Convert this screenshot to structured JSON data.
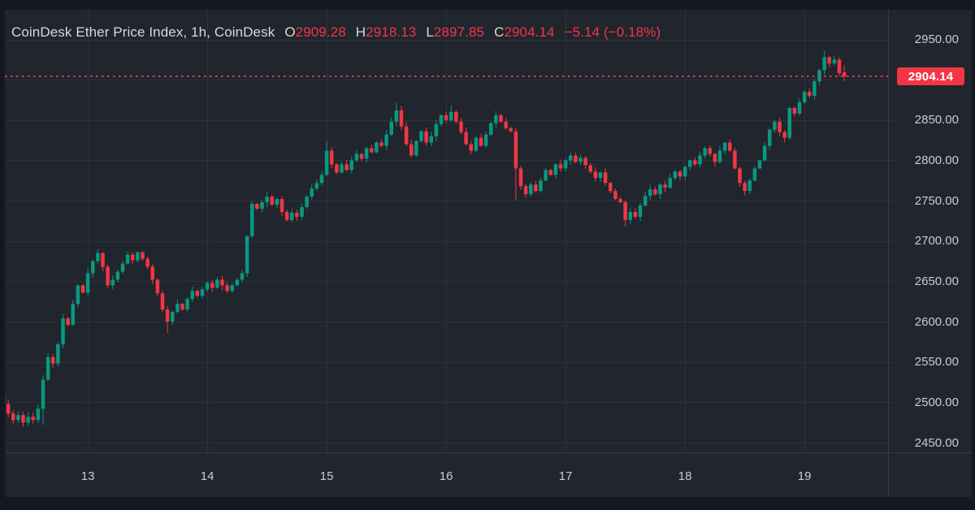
{
  "legend": {
    "title": "CoinDesk Ether Price Index, 1h, CoinDesk",
    "ohlc": [
      {
        "label": "O",
        "value": "2909.28"
      },
      {
        "label": "H",
        "value": "2918.13"
      },
      {
        "label": "L",
        "value": "2897.85"
      },
      {
        "label": "C",
        "value": "2904.14"
      }
    ],
    "change": "−5.14 (−0.18%)"
  },
  "last_price_label": "2904.14",
  "price_axis": {
    "ticks": [
      {
        "value": 2950,
        "label": "2950.00"
      },
      {
        "value": 2900,
        "label": ""
      },
      {
        "value": 2850,
        "label": "2850.00"
      },
      {
        "value": 2800,
        "label": "2800.00"
      },
      {
        "value": 2750,
        "label": "2750.00"
      },
      {
        "value": 2700,
        "label": "2700.00"
      },
      {
        "value": 2650,
        "label": "2650.00"
      },
      {
        "value": 2600,
        "label": "2600.00"
      },
      {
        "value": 2550,
        "label": "2550.00"
      },
      {
        "value": 2500,
        "label": "2500.00"
      },
      {
        "value": 2450,
        "label": "2450.00"
      }
    ]
  },
  "time_axis": {
    "labels": [
      "13",
      "14",
      "15",
      "16",
      "17",
      "18",
      "19"
    ]
  },
  "colors": {
    "up": "#089981",
    "down": "#f23645",
    "accent_red": "#f23645",
    "grid": "#2d3139",
    "separator": "#363b46",
    "pane_bg": "#21252d",
    "outer_bg": "#141823",
    "text": "#c8ccd3",
    "title_text": "#d6d9de"
  },
  "chart_data": {
    "type": "candlestick",
    "title": "CoinDesk Ether Price Index",
    "interval": "1h",
    "source": "CoinDesk",
    "last": {
      "open": 2909.28,
      "high": 2918.13,
      "low": 2897.85,
      "close": 2904.14,
      "change": -5.14,
      "change_pct": -0.18
    },
    "y_axis_range": [
      2438,
      2987
    ],
    "x_labels": [
      "13",
      "14",
      "15",
      "16",
      "17",
      "18",
      "19"
    ],
    "day_tick_first_index": 17,
    "candles_per_day": 24,
    "first_open": 2508,
    "closes": [
      2498,
      2486,
      2478,
      2484,
      2475,
      2482,
      2478,
      2492,
      2528,
      2556,
      2548,
      2572,
      2604,
      2596,
      2622,
      2645,
      2636,
      2660,
      2675,
      2685,
      2668,
      2645,
      2652,
      2662,
      2672,
      2683,
      2676,
      2686,
      2678,
      2668,
      2652,
      2635,
      2615,
      2600,
      2612,
      2622,
      2615,
      2628,
      2638,
      2632,
      2640,
      2648,
      2642,
      2652,
      2645,
      2638,
      2645,
      2652,
      2660,
      2706,
      2746,
      2740,
      2748,
      2755,
      2745,
      2752,
      2736,
      2726,
      2735,
      2730,
      2742,
      2755,
      2765,
      2772,
      2782,
      2812,
      2795,
      2785,
      2795,
      2788,
      2800,
      2808,
      2802,
      2815,
      2810,
      2822,
      2818,
      2832,
      2848,
      2862,
      2842,
      2820,
      2806,
      2824,
      2836,
      2822,
      2830,
      2845,
      2856,
      2850,
      2860,
      2848,
      2835,
      2820,
      2812,
      2828,
      2818,
      2832,
      2846,
      2856,
      2848,
      2840,
      2836,
      2790,
      2768,
      2758,
      2770,
      2762,
      2775,
      2788,
      2782,
      2795,
      2790,
      2800,
      2806,
      2798,
      2803,
      2794,
      2786,
      2778,
      2785,
      2772,
      2762,
      2752,
      2748,
      2726,
      2736,
      2730,
      2744,
      2756,
      2764,
      2758,
      2770,
      2766,
      2778,
      2786,
      2780,
      2792,
      2800,
      2795,
      2806,
      2815,
      2808,
      2798,
      2812,
      2822,
      2812,
      2790,
      2772,
      2762,
      2775,
      2790,
      2800,
      2818,
      2838,
      2848,
      2835,
      2828,
      2865,
      2858,
      2872,
      2885,
      2880,
      2898,
      2912,
      2928,
      2920,
      2925,
      2908,
      2904.14
    ],
    "wick_overrides": {
      "8": {
        "low": 2472
      },
      "33": {
        "low": 2586
      },
      "65": {
        "high": 2824
      },
      "79": {
        "high": 2872
      },
      "90": {
        "high": 2868
      },
      "103": {
        "low": 2750
      },
      "125": {
        "low": 2718
      },
      "165": {
        "high": 2936
      },
      "169": {
        "open": 2909.28,
        "high": 2918.13,
        "low": 2897.85,
        "close": 2904.14
      }
    }
  }
}
